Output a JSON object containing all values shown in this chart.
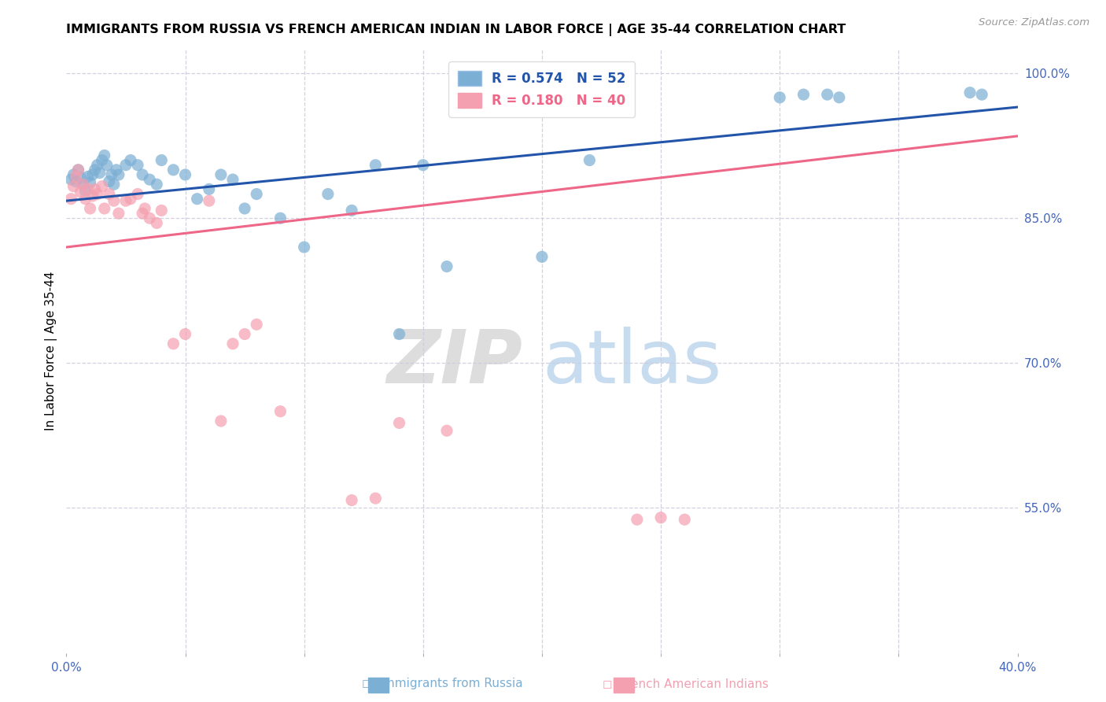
{
  "title": "IMMIGRANTS FROM RUSSIA VS FRENCH AMERICAN INDIAN IN LABOR FORCE | AGE 35-44 CORRELATION CHART",
  "source": "Source: ZipAtlas.com",
  "ylabel": "In Labor Force | Age 35-44",
  "x_min": 0.0,
  "x_max": 0.4,
  "y_min": 0.4,
  "y_max": 1.025,
  "blue_R": 0.574,
  "blue_N": 52,
  "pink_R": 0.18,
  "pink_N": 40,
  "blue_color": "#7BAFD4",
  "pink_color": "#F4A0B0",
  "blue_line_color": "#2255AA",
  "pink_line_color": "#EE6688",
  "watermark_zip": "ZIP",
  "watermark_atlas": "atlas",
  "blue_x": [
    0.002,
    0.003,
    0.004,
    0.005,
    0.006,
    0.007,
    0.008,
    0.009,
    0.01,
    0.011,
    0.012,
    0.013,
    0.014,
    0.015,
    0.016,
    0.017,
    0.018,
    0.019,
    0.02,
    0.021,
    0.022,
    0.025,
    0.027,
    0.03,
    0.032,
    0.035,
    0.038,
    0.04,
    0.045,
    0.05,
    0.055,
    0.06,
    0.065,
    0.07,
    0.075,
    0.08,
    0.09,
    0.1,
    0.11,
    0.12,
    0.13,
    0.14,
    0.15,
    0.16,
    0.2,
    0.22,
    0.3,
    0.31,
    0.32,
    0.325,
    0.38,
    0.385
  ],
  "blue_y": [
    0.89,
    0.895,
    0.888,
    0.9,
    0.892,
    0.885,
    0.878,
    0.893,
    0.887,
    0.895,
    0.9,
    0.905,
    0.897,
    0.91,
    0.915,
    0.905,
    0.888,
    0.895,
    0.885,
    0.9,
    0.895,
    0.905,
    0.91,
    0.905,
    0.895,
    0.89,
    0.885,
    0.91,
    0.9,
    0.895,
    0.87,
    0.88,
    0.895,
    0.89,
    0.86,
    0.875,
    0.85,
    0.82,
    0.875,
    0.858,
    0.905,
    0.73,
    0.905,
    0.8,
    0.81,
    0.91,
    0.975,
    0.978,
    0.978,
    0.975,
    0.98,
    0.978
  ],
  "pink_x": [
    0.002,
    0.003,
    0.004,
    0.005,
    0.006,
    0.007,
    0.008,
    0.009,
    0.01,
    0.011,
    0.012,
    0.013,
    0.015,
    0.016,
    0.018,
    0.02,
    0.022,
    0.025,
    0.027,
    0.03,
    0.032,
    0.033,
    0.035,
    0.038,
    0.04,
    0.045,
    0.05,
    0.06,
    0.065,
    0.07,
    0.075,
    0.08,
    0.09,
    0.12,
    0.13,
    0.14,
    0.16,
    0.24,
    0.25,
    0.26
  ],
  "pink_y": [
    0.87,
    0.883,
    0.893,
    0.9,
    0.877,
    0.885,
    0.87,
    0.88,
    0.86,
    0.873,
    0.88,
    0.875,
    0.883,
    0.86,
    0.875,
    0.868,
    0.855,
    0.868,
    0.87,
    0.875,
    0.855,
    0.86,
    0.85,
    0.845,
    0.858,
    0.72,
    0.73,
    0.868,
    0.64,
    0.72,
    0.73,
    0.74,
    0.65,
    0.558,
    0.56,
    0.638,
    0.63,
    0.538,
    0.54,
    0.538
  ],
  "blue_line_x0": 0.0,
  "blue_line_y0": 0.868,
  "blue_line_x1": 0.4,
  "blue_line_y1": 0.965,
  "pink_line_x0": 0.0,
  "pink_line_y0": 0.82,
  "pink_line_x1": 0.4,
  "pink_line_y1": 0.935
}
